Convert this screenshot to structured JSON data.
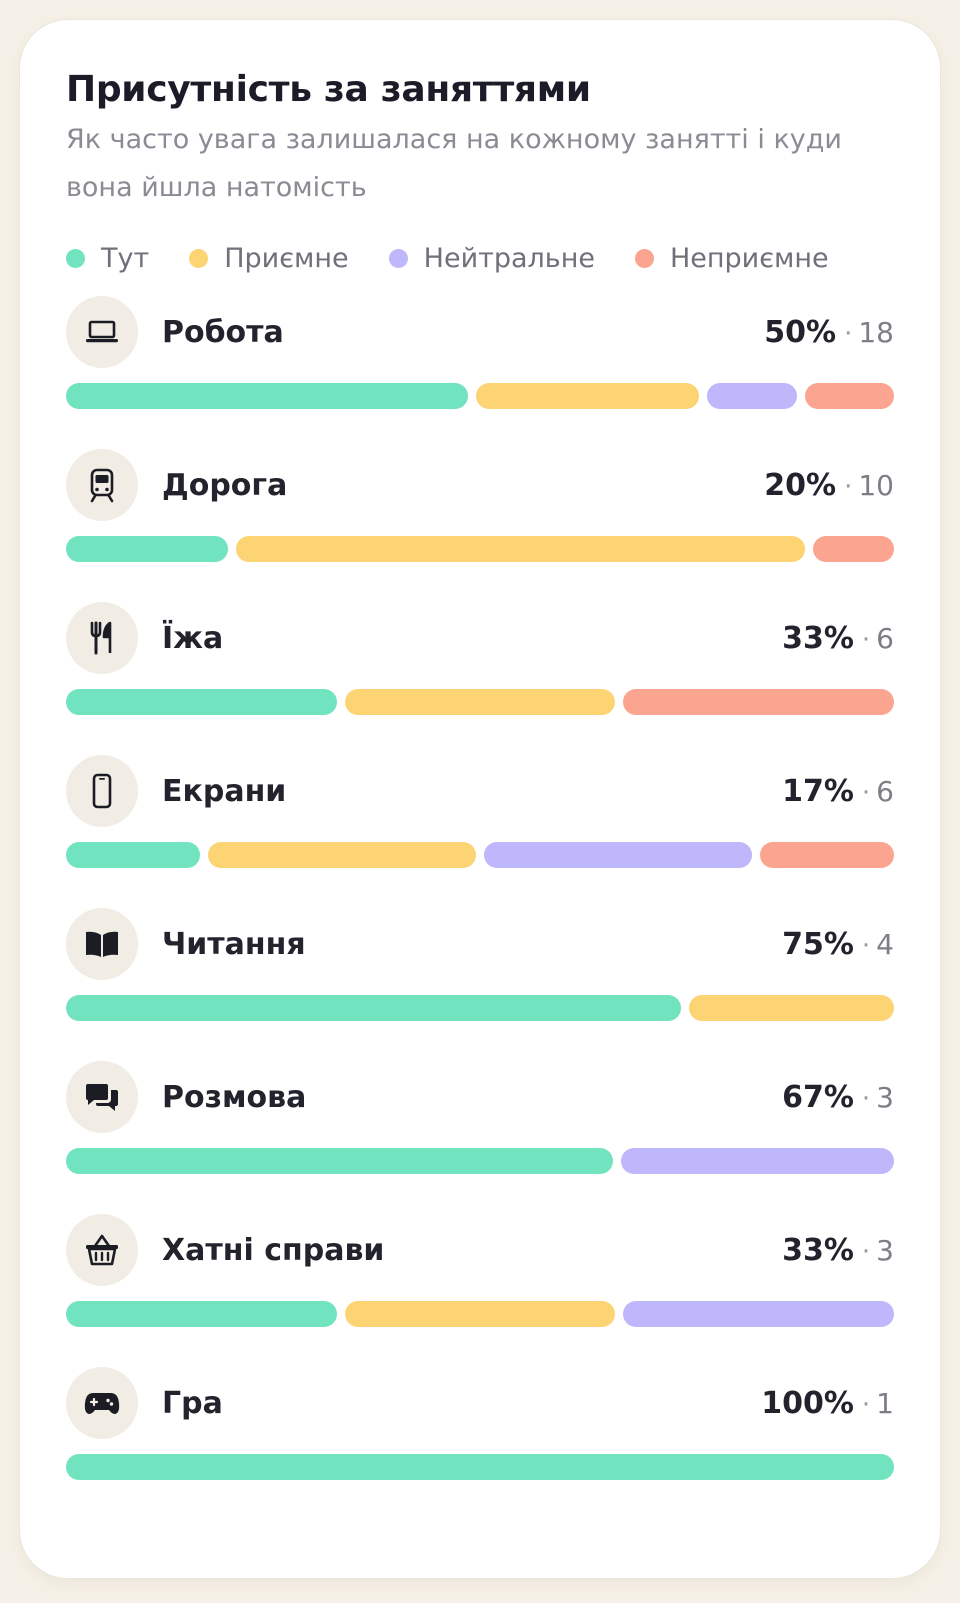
{
  "title": "Присутність за заняттями",
  "subtitle": "Як часто увага залишалася на кожному занятті і куди вона йшла натомість",
  "legend": [
    {
      "key": "here",
      "label": "Тут",
      "color": "#72e3bf"
    },
    {
      "key": "pleasant",
      "label": "Приємне",
      "color": "#fdd473"
    },
    {
      "key": "neutral",
      "label": "Нейтральне",
      "color": "#bfb7fb"
    },
    {
      "key": "unpleasant",
      "label": "Неприємне",
      "color": "#fba590"
    }
  ],
  "rows": [
    {
      "label": "Робота",
      "icon": "laptop-icon",
      "pct": "50%",
      "count": "18",
      "segments": [
        {
          "key": "here",
          "value": 9
        },
        {
          "key": "pleasant",
          "value": 5
        },
        {
          "key": "neutral",
          "value": 2
        },
        {
          "key": "unpleasant",
          "value": 2
        }
      ]
    },
    {
      "label": "Дорога",
      "icon": "train-icon",
      "pct": "20%",
      "count": "10",
      "segments": [
        {
          "key": "here",
          "value": 2
        },
        {
          "key": "pleasant",
          "value": 7
        },
        {
          "key": "unpleasant",
          "value": 1
        }
      ]
    },
    {
      "label": "Їжа",
      "icon": "fork-knife-icon",
      "pct": "33%",
      "count": "6",
      "segments": [
        {
          "key": "here",
          "value": 2
        },
        {
          "key": "pleasant",
          "value": 2
        },
        {
          "key": "unpleasant",
          "value": 2
        }
      ]
    },
    {
      "label": "Екрани",
      "icon": "phone-icon",
      "pct": "17%",
      "count": "6",
      "segments": [
        {
          "key": "here",
          "value": 1
        },
        {
          "key": "pleasant",
          "value": 2
        },
        {
          "key": "neutral",
          "value": 2
        },
        {
          "key": "unpleasant",
          "value": 1
        }
      ]
    },
    {
      "label": "Читання",
      "icon": "book-icon",
      "pct": "75%",
      "count": "4",
      "segments": [
        {
          "key": "here",
          "value": 3
        },
        {
          "key": "pleasant",
          "value": 1
        }
      ]
    },
    {
      "label": "Розмова",
      "icon": "chat-bubbles-icon",
      "pct": "67%",
      "count": "3",
      "segments": [
        {
          "key": "here",
          "value": 2
        },
        {
          "key": "neutral",
          "value": 1
        }
      ]
    },
    {
      "label": "Хатні справи",
      "icon": "basket-icon",
      "pct": "33%",
      "count": "3",
      "segments": [
        {
          "key": "here",
          "value": 1
        },
        {
          "key": "pleasant",
          "value": 1
        },
        {
          "key": "neutral",
          "value": 1
        }
      ]
    },
    {
      "label": "Гра",
      "icon": "gamepad-icon",
      "pct": "100%",
      "count": "1",
      "segments": [
        {
          "key": "here",
          "value": 1
        }
      ]
    }
  ]
}
